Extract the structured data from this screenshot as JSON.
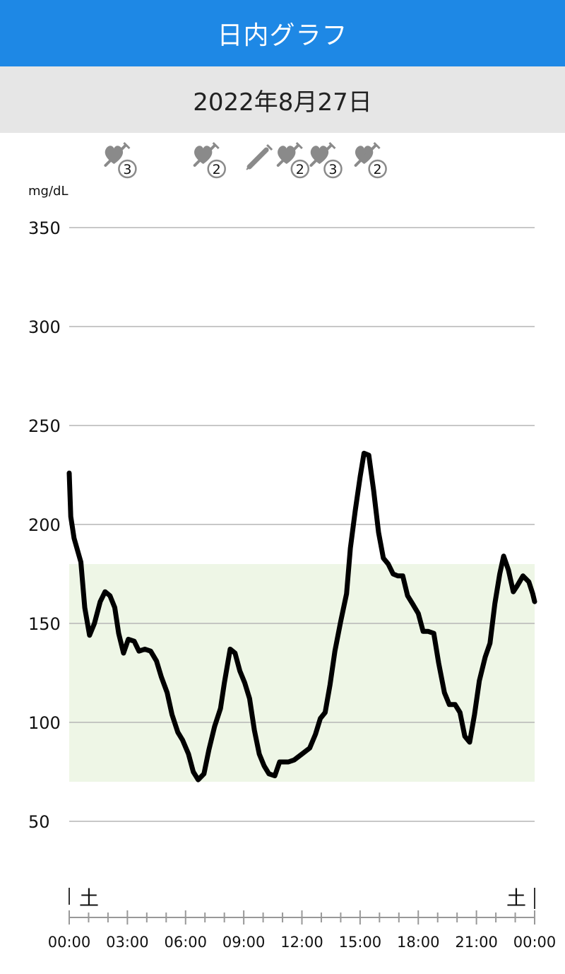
{
  "header": {
    "title": "日内グラフ"
  },
  "date_bar": {
    "date": "2022年8月27日"
  },
  "events": [
    {
      "time": 2.6,
      "icon": "syringe-heart-icon",
      "dose": "3"
    },
    {
      "time": 7.2,
      "icon": "syringe-heart-icon",
      "dose": "2"
    },
    {
      "time": 9.8,
      "icon": "syringe-icon",
      "dose": ""
    },
    {
      "time": 11.5,
      "icon": "syringe-heart-icon",
      "dose": "2"
    },
    {
      "time": 13.2,
      "icon": "syringe-heart-icon",
      "dose": "3"
    },
    {
      "time": 15.5,
      "icon": "syringe-heart-icon",
      "dose": "2"
    }
  ],
  "chart_data": {
    "type": "line",
    "ylabel": "mg/dL",
    "ylim": [
      20,
      370
    ],
    "xlim": [
      0,
      24
    ],
    "yticks": [
      50,
      100,
      150,
      200,
      250,
      300,
      350
    ],
    "xticks": [
      "00:00",
      "03:00",
      "06:00",
      "09:00",
      "12:00",
      "15:00",
      "18:00",
      "21:00",
      "00:00"
    ],
    "target_range": [
      70,
      180
    ],
    "target_color": "#eef6e6",
    "day_labels": [
      "土",
      "土"
    ],
    "series": [
      {
        "color": "#000000",
        "points": [
          [
            0.0,
            226
          ],
          [
            0.08,
            204
          ],
          [
            0.25,
            193
          ],
          [
            0.6,
            181
          ],
          [
            0.8,
            158
          ],
          [
            1.05,
            144
          ],
          [
            1.3,
            150
          ],
          [
            1.6,
            161
          ],
          [
            1.85,
            166
          ],
          [
            2.1,
            164
          ],
          [
            2.35,
            158
          ],
          [
            2.55,
            145
          ],
          [
            2.8,
            135
          ],
          [
            3.05,
            142
          ],
          [
            3.35,
            141
          ],
          [
            3.6,
            136
          ],
          [
            3.9,
            137
          ],
          [
            4.2,
            136
          ],
          [
            4.5,
            131
          ],
          [
            4.75,
            123
          ],
          [
            5.05,
            115
          ],
          [
            5.3,
            104
          ],
          [
            5.6,
            95
          ],
          [
            5.85,
            91
          ],
          [
            6.15,
            84
          ],
          [
            6.4,
            75
          ],
          [
            6.65,
            71
          ],
          [
            6.95,
            74
          ],
          [
            7.2,
            86
          ],
          [
            7.5,
            98
          ],
          [
            7.8,
            107
          ],
          [
            8.0,
            120
          ],
          [
            8.3,
            137
          ],
          [
            8.55,
            135
          ],
          [
            8.8,
            126
          ],
          [
            9.05,
            120
          ],
          [
            9.3,
            112
          ],
          [
            9.55,
            96
          ],
          [
            9.8,
            84
          ],
          [
            10.05,
            78
          ],
          [
            10.3,
            74
          ],
          [
            10.6,
            73
          ],
          [
            10.85,
            80
          ],
          [
            11.3,
            80
          ],
          [
            11.6,
            81
          ],
          [
            12.0,
            84
          ],
          [
            12.4,
            87
          ],
          [
            12.7,
            94
          ],
          [
            12.95,
            102
          ],
          [
            13.2,
            105
          ],
          [
            13.45,
            119
          ],
          [
            13.7,
            136
          ],
          [
            14.0,
            151
          ],
          [
            14.3,
            165
          ],
          [
            14.5,
            188
          ],
          [
            14.75,
            207
          ],
          [
            15.0,
            224
          ],
          [
            15.2,
            236
          ],
          [
            15.45,
            235
          ],
          [
            15.7,
            217
          ],
          [
            15.95,
            196
          ],
          [
            16.2,
            183
          ],
          [
            16.45,
            180
          ],
          [
            16.7,
            175
          ],
          [
            16.95,
            174
          ],
          [
            17.2,
            174
          ],
          [
            17.45,
            164
          ],
          [
            17.7,
            160
          ],
          [
            18.0,
            155
          ],
          [
            18.25,
            146
          ],
          [
            18.5,
            146
          ],
          [
            18.8,
            145
          ],
          [
            19.05,
            130
          ],
          [
            19.35,
            115
          ],
          [
            19.6,
            109
          ],
          [
            19.9,
            109
          ],
          [
            20.15,
            105
          ],
          [
            20.4,
            93
          ],
          [
            20.65,
            90
          ],
          [
            20.9,
            104
          ],
          [
            21.15,
            121
          ],
          [
            21.45,
            133
          ],
          [
            21.7,
            140
          ],
          [
            21.95,
            160
          ],
          [
            22.2,
            175
          ],
          [
            22.4,
            184
          ],
          [
            22.65,
            177
          ],
          [
            22.9,
            166
          ],
          [
            23.1,
            169
          ],
          [
            23.4,
            174
          ],
          [
            23.7,
            171
          ],
          [
            23.9,
            165
          ],
          [
            24.0,
            161
          ]
        ]
      }
    ]
  }
}
